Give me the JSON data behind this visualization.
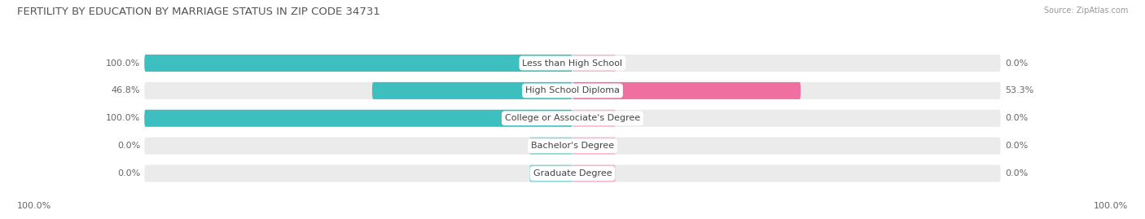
{
  "title": "FERTILITY BY EDUCATION BY MARRIAGE STATUS IN ZIP CODE 34731",
  "source": "Source: ZipAtlas.com",
  "categories": [
    "Less than High School",
    "High School Diploma",
    "College or Associate's Degree",
    "Bachelor's Degree",
    "Graduate Degree"
  ],
  "married": [
    100.0,
    46.8,
    100.0,
    0.0,
    0.0
  ],
  "unmarried": [
    0.0,
    53.3,
    0.0,
    0.0,
    0.0
  ],
  "married_color": "#3dbfbf",
  "unmarried_color": "#ee6fa0",
  "married_light": "#8fd5d5",
  "unmarried_light": "#f5b8ce",
  "bar_bg_color": "#ebebeb",
  "stub_pct": 10,
  "title_fontsize": 9.5,
  "source_fontsize": 7,
  "label_fontsize": 8,
  "cat_fontsize": 8,
  "legend_fontsize": 8,
  "background_color": "#ffffff",
  "x_min": -100,
  "x_max": 100
}
